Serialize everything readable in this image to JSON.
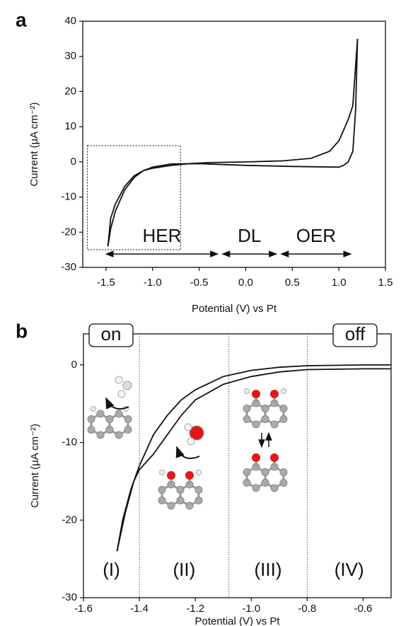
{
  "chart_data": [
    {
      "type": "line",
      "panel_label": "a",
      "x_label": "Potential (V) vs Pt",
      "y_label": "Current (µA cm⁻²)",
      "xlim": [
        -1.75,
        1.5
      ],
      "xticks": [
        -1.5,
        {
          "value": -1,
          "label": "-1.0"
        },
        -0.5,
        {
          "value": 0,
          "label": "0.0"
        },
        0.5,
        {
          "value": 1,
          "label": "1.0"
        },
        1.5
      ],
      "ylim": [
        -30,
        40
      ],
      "yticks": [
        -30,
        -20,
        -10,
        0,
        10,
        20,
        30,
        40
      ],
      "color": "#111111",
      "series": [
        {
          "x": [
            -1.48,
            -1.45,
            -1.4,
            -1.3,
            -1.2,
            -1.1,
            -1.0,
            -0.8,
            -0.6,
            -0.4,
            0,
            0.4,
            0.7,
            0.9,
            1.0,
            1.1,
            1.15,
            1.2
          ],
          "values": [
            -24,
            -16,
            -12,
            -7,
            -4,
            -2.5,
            -1.8,
            -1,
            -0.5,
            -0.2,
            0,
            0.3,
            1,
            3,
            6,
            12,
            16,
            35
          ]
        },
        {
          "x": [
            1.2,
            1.18,
            1.15,
            1.1,
            1.05,
            1.0,
            0.5,
            0,
            -0.5,
            -0.8,
            -1.0,
            -1.1,
            -1.2,
            -1.3,
            -1.4,
            -1.45,
            -1.48
          ],
          "values": [
            35,
            15,
            3,
            0,
            -1,
            -1.5,
            -1.3,
            -1,
            -0.5,
            -0.6,
            -1.5,
            -2.5,
            -4.5,
            -8,
            -14,
            -19,
            -24
          ]
        }
      ],
      "dotted_box": {
        "x": [
          -1.7,
          -0.7
        ],
        "y": [
          -25,
          4.6
        ]
      },
      "regions": [
        {
          "label": "HER",
          "x": [
            -1.5,
            -0.3
          ]
        },
        {
          "label": "DL",
          "x": [
            -0.25,
            0.33
          ]
        },
        {
          "label": "OER",
          "x": [
            0.38,
            1.13
          ]
        }
      ],
      "arrow_y": -26.2
    },
    {
      "type": "line",
      "panel_label": "b",
      "x_label": "Potential (V) vs Pt",
      "y_label": "Current (µA cm⁻²)",
      "xlim": [
        -1.6,
        -0.5
      ],
      "xticks": [
        -1.6,
        -1.4,
        -1.2,
        {
          "value": -1,
          "label": "-1.0"
        },
        -0.8,
        -0.6
      ],
      "ylim": [
        -30,
        4
      ],
      "yticks": [
        -30,
        -20,
        -10,
        0
      ],
      "color": "#111111",
      "series": [
        {
          "x": [
            -1.48,
            -1.46,
            -1.43,
            -1.4,
            -1.35,
            -1.3,
            -1.25,
            -1.2,
            -1.1,
            -1.0,
            -0.9,
            -0.8,
            -0.6,
            -0.5
          ],
          "values": [
            -24,
            -20,
            -16,
            -13,
            -9,
            -6.5,
            -4.5,
            -3.2,
            -1.5,
            -0.7,
            -0.3,
            -0.1,
            0,
            0
          ]
        },
        {
          "x": [
            -1.48,
            -1.45,
            -1.42,
            -1.4,
            -1.35,
            -1.3,
            -1.25,
            -1.2,
            -1.1,
            -1.0,
            -0.9,
            -0.8,
            -0.6,
            -0.5
          ],
          "values": [
            -24,
            -19,
            -15,
            -13.5,
            -11.5,
            -9,
            -6.5,
            -4.5,
            -2.5,
            -1.5,
            -0.9,
            -0.6,
            -0.5,
            -0.5
          ]
        }
      ],
      "dividers": [
        -1.4,
        -1.08,
        -0.8
      ],
      "region_labels": [
        "(I)",
        "(II)",
        "(III)",
        "(IV)"
      ],
      "annotations": [
        "on",
        "off"
      ]
    }
  ]
}
